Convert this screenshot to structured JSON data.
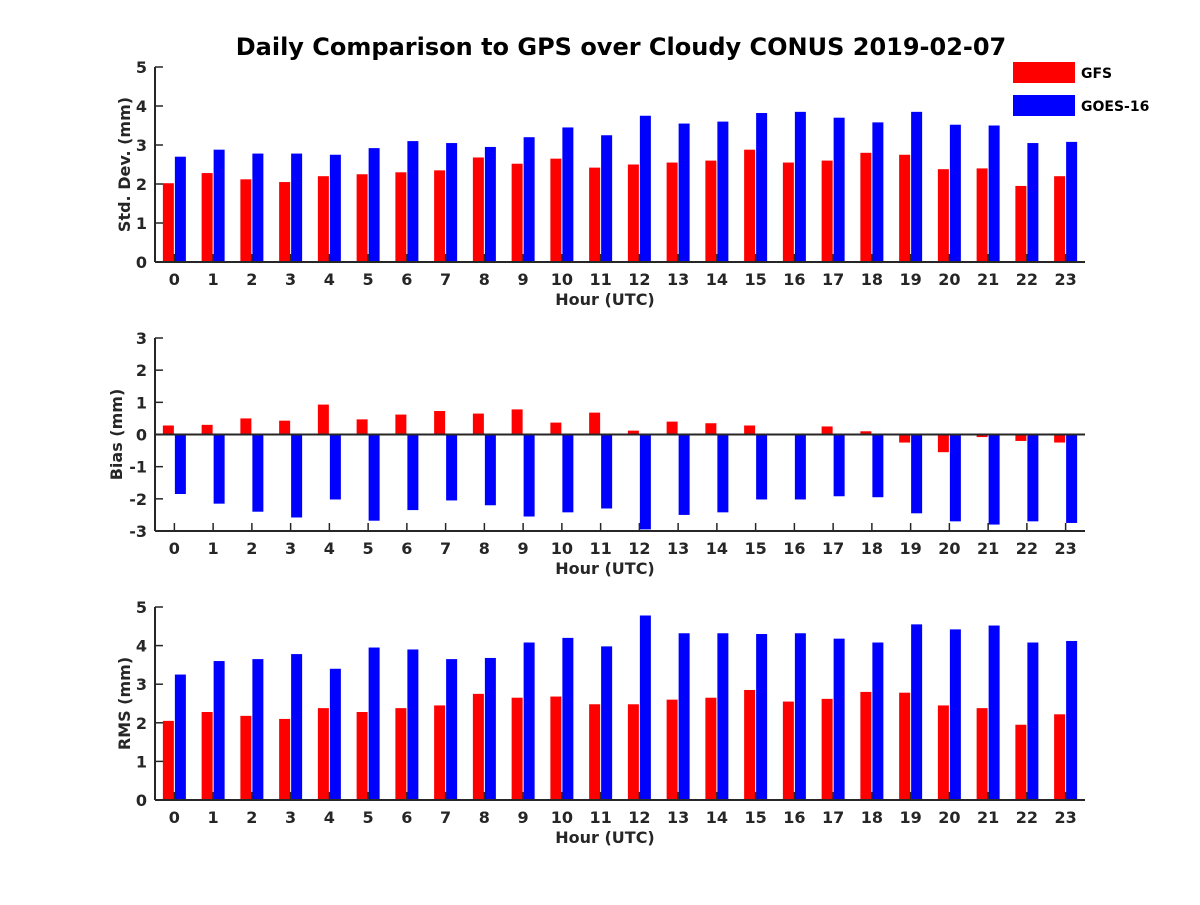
{
  "chart_data": [
    {
      "type": "bar",
      "title": "Daily Comparison to GPS over Cloudy CONUS 2019-02-07",
      "xlabel": "Hour (UTC)",
      "ylabel": "Std. Dev. (mm)",
      "ylim": [
        0,
        5
      ],
      "yticks": [
        "0",
        "1",
        "2",
        "3",
        "4",
        "5"
      ],
      "categories": [
        "0",
        "1",
        "2",
        "3",
        "4",
        "5",
        "6",
        "7",
        "8",
        "9",
        "10",
        "11",
        "12",
        "13",
        "14",
        "15",
        "16",
        "17",
        "18",
        "19",
        "20",
        "21",
        "22",
        "23"
      ],
      "series": [
        {
          "name": "GFS",
          "color": "#ff0000",
          "values": [
            2.02,
            2.28,
            2.12,
            2.05,
            2.2,
            2.25,
            2.3,
            2.35,
            2.68,
            2.52,
            2.65,
            2.42,
            2.5,
            2.55,
            2.6,
            2.88,
            2.55,
            2.6,
            2.8,
            2.75,
            2.38,
            2.4,
            1.95,
            2.2
          ]
        },
        {
          "name": "GOES-16",
          "color": "#0000ff",
          "values": [
            2.7,
            2.88,
            2.78,
            2.78,
            2.75,
            2.92,
            3.1,
            3.05,
            2.95,
            3.2,
            3.45,
            3.25,
            3.75,
            3.55,
            3.6,
            3.82,
            3.85,
            3.7,
            3.58,
            3.85,
            3.52,
            3.5,
            3.05,
            3.08
          ]
        }
      ],
      "grid": false,
      "legend": "top-right"
    },
    {
      "type": "bar",
      "xlabel": "Hour (UTC)",
      "ylabel": "Bias (mm)",
      "ylim": [
        -3,
        3
      ],
      "yticks": [
        "-3",
        "-2",
        "-1",
        "0",
        "1",
        "2",
        "3"
      ],
      "categories": [
        "0",
        "1",
        "2",
        "3",
        "4",
        "5",
        "6",
        "7",
        "8",
        "9",
        "10",
        "11",
        "12",
        "13",
        "14",
        "15",
        "16",
        "17",
        "18",
        "19",
        "20",
        "21",
        "22",
        "23"
      ],
      "series": [
        {
          "name": "GFS",
          "color": "#ff0000",
          "values": [
            0.28,
            0.3,
            0.5,
            0.43,
            0.93,
            0.47,
            0.62,
            0.73,
            0.65,
            0.78,
            0.37,
            0.68,
            0.12,
            0.4,
            0.35,
            0.28,
            0.0,
            0.25,
            0.1,
            -0.25,
            -0.55,
            -0.08,
            -0.2,
            -0.25
          ]
        },
        {
          "name": "GOES-16",
          "color": "#0000ff",
          "values": [
            -1.85,
            -2.15,
            -2.4,
            -2.58,
            -2.02,
            -2.68,
            -2.35,
            -2.05,
            -2.2,
            -2.55,
            -2.42,
            -2.3,
            -2.95,
            -2.5,
            -2.42,
            -2.02,
            -2.02,
            -1.92,
            -1.95,
            -2.45,
            -2.7,
            -2.8,
            -2.7,
            -2.75
          ]
        }
      ],
      "grid": false
    },
    {
      "type": "bar",
      "xlabel": "Hour (UTC)",
      "ylabel": "RMS (mm)",
      "ylim": [
        0,
        5
      ],
      "yticks": [
        "0",
        "1",
        "2",
        "3",
        "4",
        "5"
      ],
      "categories": [
        "0",
        "1",
        "2",
        "3",
        "4",
        "5",
        "6",
        "7",
        "8",
        "9",
        "10",
        "11",
        "12",
        "13",
        "14",
        "15",
        "16",
        "17",
        "18",
        "19",
        "20",
        "21",
        "22",
        "23"
      ],
      "series": [
        {
          "name": "GFS",
          "color": "#ff0000",
          "values": [
            2.05,
            2.28,
            2.18,
            2.1,
            2.38,
            2.28,
            2.38,
            2.45,
            2.75,
            2.65,
            2.68,
            2.48,
            2.48,
            2.6,
            2.65,
            2.85,
            2.55,
            2.62,
            2.8,
            2.78,
            2.45,
            2.38,
            1.95,
            2.22
          ]
        },
        {
          "name": "GOES-16",
          "color": "#0000ff",
          "values": [
            3.25,
            3.6,
            3.65,
            3.78,
            3.4,
            3.95,
            3.9,
            3.65,
            3.68,
            4.08,
            4.2,
            3.98,
            4.78,
            4.32,
            4.32,
            4.3,
            4.32,
            4.18,
            4.08,
            4.55,
            4.42,
            4.52,
            4.08,
            4.12
          ]
        }
      ],
      "grid": false
    }
  ]
}
